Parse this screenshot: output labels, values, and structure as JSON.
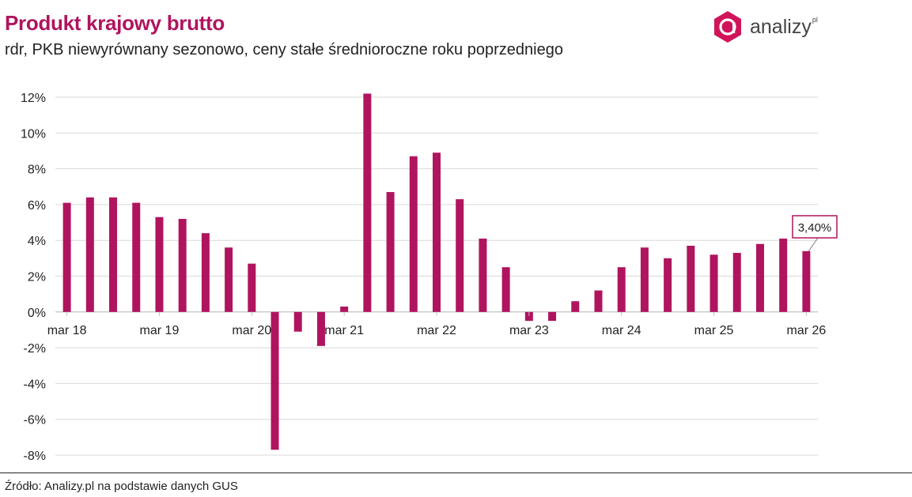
{
  "header": {
    "title": "Produkt krajowy brutto",
    "subtitle": "rdr, PKB niewyrównany sezonowo, ceny stałe średnioroczne roku poprzedniego"
  },
  "logo": {
    "text": "analizy",
    "suffix": "pl",
    "letter": "a"
  },
  "footer": {
    "source": "Źródło: Analizy.pl na podstawie danych GUS"
  },
  "colors": {
    "bar": "#b0145e",
    "grid": "#d9d9d9",
    "title": "#b0145e"
  },
  "chart_data": {
    "type": "bar",
    "categories": [
      "mar 18",
      "cze 18",
      "wrz 18",
      "gru 18",
      "mar 19",
      "cze 19",
      "wrz 19",
      "gru 19",
      "mar 20",
      "cze 20",
      "wrz 20",
      "gru 20",
      "mar 21",
      "cze 21",
      "wrz 21",
      "gru 21",
      "mar 22",
      "cze 22",
      "wrz 22",
      "gru 22",
      "mar 23",
      "cze 23",
      "wrz 23",
      "gru 23",
      "mar 24",
      "cze 24",
      "wrz 24",
      "gru 24",
      "mar 25",
      "cze 25",
      "wrz 25",
      "gru 25",
      "mar 26"
    ],
    "x_tick_labels": [
      "mar 18",
      "mar 19",
      "mar 20",
      "mar 21",
      "mar 22",
      "mar 23",
      "mar 24",
      "mar 25",
      "mar 26"
    ],
    "series": [
      {
        "values": [
          6.1,
          6.4,
          6.4,
          6.1,
          5.3,
          5.2,
          4.4,
          3.6,
          2.7,
          -7.7,
          -1.1,
          -1.9,
          0.3,
          12.2,
          6.7,
          8.7,
          8.9,
          6.3,
          4.1,
          2.5,
          -0.5,
          -0.5,
          0.6,
          1.2,
          2.5,
          3.6,
          3.0,
          3.7,
          3.2,
          3.3,
          3.8,
          4.1,
          3.4
        ]
      }
    ],
    "y_ticks": [
      "12%",
      "10%",
      "8%",
      "6%",
      "4%",
      "2%",
      "0%",
      "-2%",
      "-4%",
      "-6%",
      "-8%"
    ],
    "ylim": [
      -8,
      12
    ],
    "annotation": {
      "index": 32,
      "label": "3,40%"
    },
    "grid": true,
    "xlabel": "",
    "ylabel": ""
  }
}
